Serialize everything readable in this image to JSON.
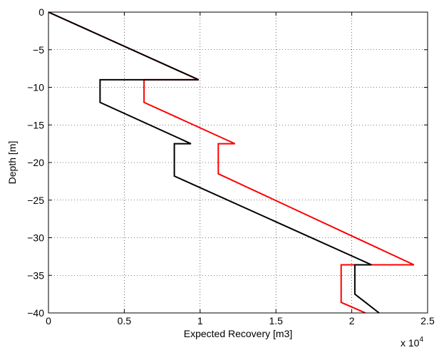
{
  "chart_data": {
    "type": "line",
    "title": "",
    "xlabel": "Expected Recovery [m3]",
    "ylabel": "Depth [m]",
    "x_multiplier_label": "x 10",
    "x_multiplier_exponent": "4",
    "xlim": [
      0,
      2.5
    ],
    "ylim": [
      -40,
      0
    ],
    "xticks": [
      0,
      0.5,
      1,
      1.5,
      2,
      2.5
    ],
    "xtick_labels": [
      "0",
      "0.5",
      "1",
      "1.5",
      "2",
      "2.5"
    ],
    "yticks": [
      0,
      -5,
      -10,
      -15,
      -20,
      -25,
      -30,
      -35,
      -40
    ],
    "ytick_labels": [
      "0",
      "−5",
      "−10",
      "−15",
      "−20",
      "−25",
      "−30",
      "−35",
      "−40"
    ],
    "grid": true,
    "grid_style": "dotted",
    "legend": false,
    "series": [
      {
        "color": "#ff0000",
        "points": [
          [
            0,
            0
          ],
          [
            0.99,
            -9
          ],
          [
            0.63,
            -9
          ],
          [
            0.63,
            -12
          ],
          [
            1.23,
            -17.5
          ],
          [
            1.12,
            -17.5
          ],
          [
            1.12,
            -21.5
          ],
          [
            2.41,
            -33.6
          ],
          [
            1.93,
            -33.6
          ],
          [
            1.93,
            -38.6
          ],
          [
            2.09,
            -40
          ]
        ]
      },
      {
        "color": "#000000",
        "points": [
          [
            0,
            0
          ],
          [
            0.99,
            -9
          ],
          [
            0.34,
            -9
          ],
          [
            0.34,
            -12
          ],
          [
            0.94,
            -17.5
          ],
          [
            0.83,
            -17.5
          ],
          [
            0.83,
            -21.8
          ],
          [
            2.13,
            -33.6
          ],
          [
            2.02,
            -33.6
          ],
          [
            2.02,
            -37.5
          ],
          [
            2.18,
            -40
          ]
        ]
      }
    ]
  }
}
